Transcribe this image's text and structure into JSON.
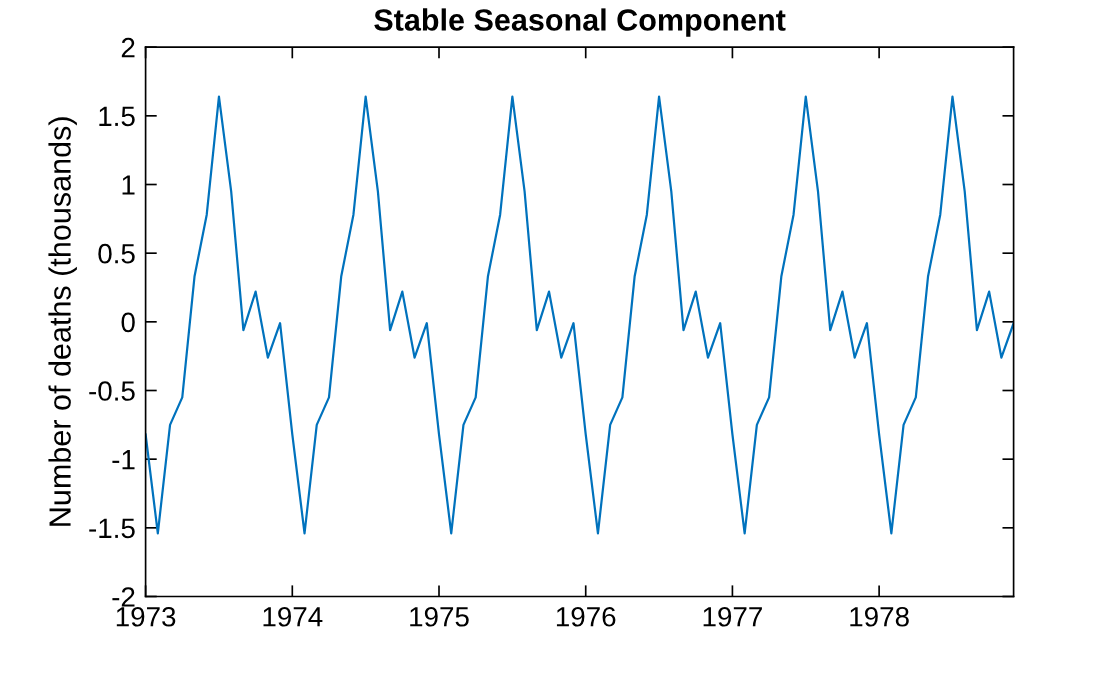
{
  "chart_data": {
    "type": "line",
    "title": "Stable Seasonal Component",
    "ylabel": "Number of deaths (thousands)",
    "x": [
      "1973-01",
      "1973-02",
      "1973-03",
      "1973-04",
      "1973-05",
      "1973-06",
      "1973-07",
      "1973-08",
      "1973-09",
      "1973-10",
      "1973-11",
      "1973-12",
      "1974-01",
      "1974-02",
      "1974-03",
      "1974-04",
      "1974-05",
      "1974-06",
      "1974-07",
      "1974-08",
      "1974-09",
      "1974-10",
      "1974-11",
      "1974-12",
      "1975-01",
      "1975-02",
      "1975-03",
      "1975-04",
      "1975-05",
      "1975-06",
      "1975-07",
      "1975-08",
      "1975-09",
      "1975-10",
      "1975-11",
      "1975-12",
      "1976-01",
      "1976-02",
      "1976-03",
      "1976-04",
      "1976-05",
      "1976-06",
      "1976-07",
      "1976-08",
      "1976-09",
      "1976-10",
      "1976-11",
      "1976-12",
      "1977-01",
      "1977-02",
      "1977-03",
      "1977-04",
      "1977-05",
      "1977-06",
      "1977-07",
      "1977-08",
      "1977-09",
      "1977-10",
      "1977-11",
      "1977-12",
      "1978-01",
      "1978-02",
      "1978-03",
      "1978-04",
      "1978-05",
      "1978-06",
      "1978-07",
      "1978-08",
      "1978-09",
      "1978-10",
      "1978-11",
      "1978-12"
    ],
    "series": [
      {
        "color": "#0072bd",
        "values": [
          -0.82,
          -1.54,
          -0.75,
          -0.55,
          0.33,
          0.78,
          1.64,
          0.95,
          -0.06,
          0.22,
          -0.26,
          -0.01,
          -0.82,
          -1.54,
          -0.75,
          -0.55,
          0.33,
          0.78,
          1.64,
          0.95,
          -0.06,
          0.22,
          -0.26,
          -0.01,
          -0.82,
          -1.54,
          -0.75,
          -0.55,
          0.33,
          0.78,
          1.64,
          0.95,
          -0.06,
          0.22,
          -0.26,
          -0.01,
          -0.82,
          -1.54,
          -0.75,
          -0.55,
          0.33,
          0.78,
          1.64,
          0.95,
          -0.06,
          0.22,
          -0.26,
          -0.01,
          -0.82,
          -1.54,
          -0.75,
          -0.55,
          0.33,
          0.78,
          1.64,
          0.95,
          -0.06,
          0.22,
          -0.26,
          -0.01,
          -0.82,
          -1.54,
          -0.75,
          -0.55,
          0.33,
          0.78,
          1.64,
          0.95,
          -0.06,
          0.22,
          -0.26,
          -0.01
        ]
      }
    ],
    "xlim": [
      "1973-01",
      "1978-12"
    ],
    "xticks": [
      "1973",
      "1974",
      "1975",
      "1976",
      "1977",
      "1978"
    ],
    "ylim": [
      -2,
      2
    ],
    "yticks": [
      -2,
      -1.5,
      -1,
      -0.5,
      0,
      0.5,
      1,
      1.5,
      2
    ],
    "grid": false,
    "legend": false,
    "marker": "none",
    "line_style": "solid"
  }
}
